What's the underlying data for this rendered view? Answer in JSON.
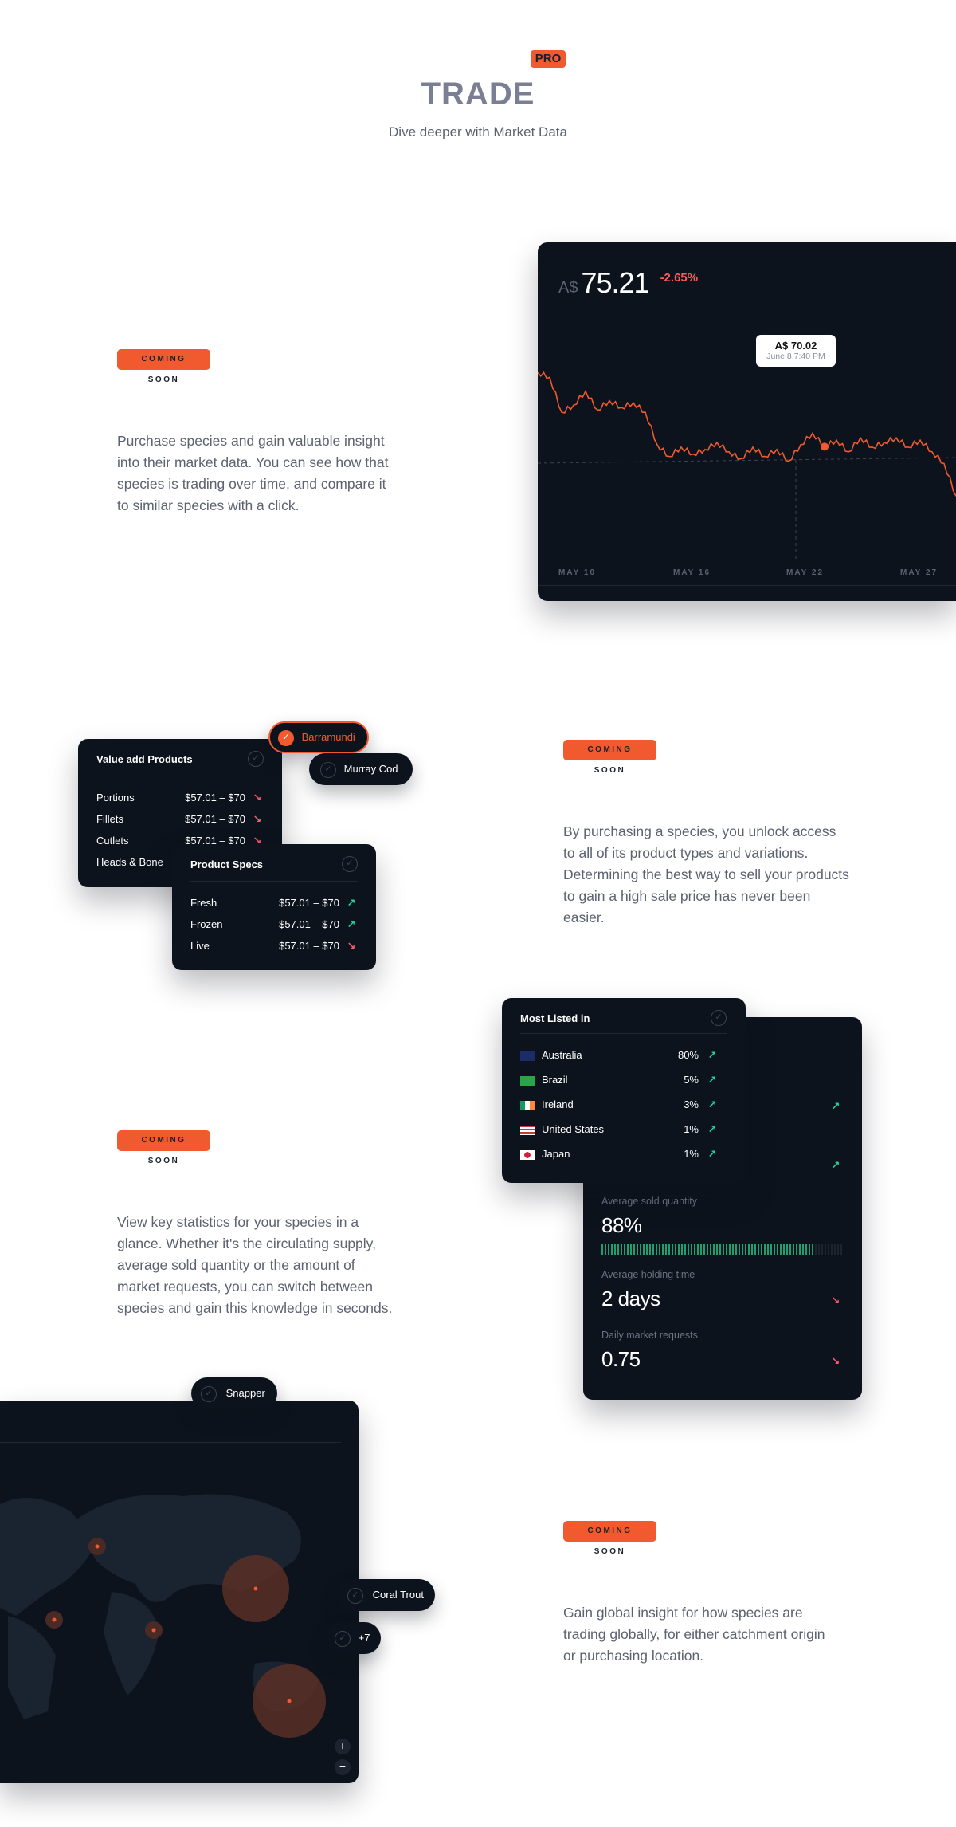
{
  "header": {
    "pro_badge": "PRO",
    "brand": "TRADE",
    "tagline": "Dive deeper with Market Data"
  },
  "colors": {
    "accent": "#f05a2e",
    "card_bg": "#0d131c",
    "up": "#26d39b",
    "down": "#ff5a72"
  },
  "section1": {
    "badge": "COMING SOON",
    "description": "Purchase species and gain valuable insight into their market data. You can see how that species is trading over time, and compare it to similar species with a click.",
    "chart": {
      "currency": "A$",
      "price": "75.21",
      "change": "-2.65%",
      "tooltip_price": "A$ 70.02",
      "tooltip_time": "June 8 7:40 PM",
      "x_ticks": [
        "MAY 10",
        "MAY 16",
        "MAY 22",
        "MAY 27"
      ]
    }
  },
  "chart_data": {
    "type": "line",
    "x_ticks": [
      "MAY 10",
      "MAY 16",
      "MAY 22",
      "MAY 27"
    ],
    "series": [
      {
        "values": [
          73.2,
          73.0,
          71.5,
          71.8,
          72.4,
          71.6,
          72.0,
          71.7,
          71.9,
          71.5,
          70.1,
          69.6,
          70.0,
          69.7,
          69.9,
          70.2,
          69.8,
          69.5,
          70.0,
          69.6,
          69.9,
          69.4,
          70.1,
          70.6,
          70.02,
          70.3,
          69.8,
          70.4,
          70.0,
          70.2,
          70.4,
          70.0,
          70.3,
          69.8,
          69.3,
          67.9
        ]
      }
    ],
    "highlight": {
      "label": "A$ 70.02",
      "time": "June 8 7:40 PM"
    }
  },
  "section2": {
    "badge": "COMING SOON",
    "description": "By purchasing a species, you unlock access to all of its product types and variations. Determining the best way to sell your products to gain a high sale price has never been easier.",
    "pill_barramundi": "Barramundi",
    "pill_murray": "Murray Cod",
    "value_add": {
      "title": "Value add Products",
      "rows": [
        {
          "label": "Portions",
          "value": "$57.01 – $70",
          "dir": "down"
        },
        {
          "label": "Fillets",
          "value": "$57.01 – $70",
          "dir": "down"
        },
        {
          "label": "Cutlets",
          "value": "$57.01 – $70",
          "dir": "down"
        },
        {
          "label": "Heads & Bone",
          "value": "",
          "dir": ""
        }
      ]
    },
    "specs": {
      "title": "Product Specs",
      "rows": [
        {
          "label": "Fresh",
          "value": "$57.01 – $70",
          "dir": "up"
        },
        {
          "label": "Frozen",
          "value": "$57.01 – $70",
          "dir": "up"
        },
        {
          "label": "Live",
          "value": "$57.01 – $70",
          "dir": "down"
        }
      ]
    }
  },
  "section3": {
    "badge": "COMING SOON",
    "description": "View key statistics for your species in a glance. Whether it's the circulating supply, average sold quantity or the amount of market requests, you can switch between species and gain this knowledge in seconds.",
    "most_listed": {
      "title": "Most Listed in",
      "rows": [
        {
          "country": "Australia",
          "pct": "80%",
          "flag": "au"
        },
        {
          "country": "Brazil",
          "pct": "5%",
          "flag": "br"
        },
        {
          "country": "Ireland",
          "pct": "3%",
          "flag": "ie"
        },
        {
          "country": "United States",
          "pct": "1%",
          "flag": "us"
        },
        {
          "country": "Japan",
          "pct": "1%",
          "flag": "jp"
        }
      ]
    },
    "stats": {
      "avg_sold_label": "Average sold quantity",
      "avg_sold_value": "88%",
      "avg_sold_fraction": 0.88,
      "holding_label": "Average holding time",
      "holding_value": "2 days",
      "requests_label": "Daily market requests",
      "requests_value": "0.75"
    }
  },
  "section4": {
    "badge": "COMING SOON",
    "description": "Gain global insight for how species are trading globally, for either catchment origin or purchasing location.",
    "pill_snapper": "Snapper",
    "pill_coral": "Coral Trout",
    "pill_more": "+7",
    "zoom_in": "+",
    "zoom_out": "−"
  }
}
